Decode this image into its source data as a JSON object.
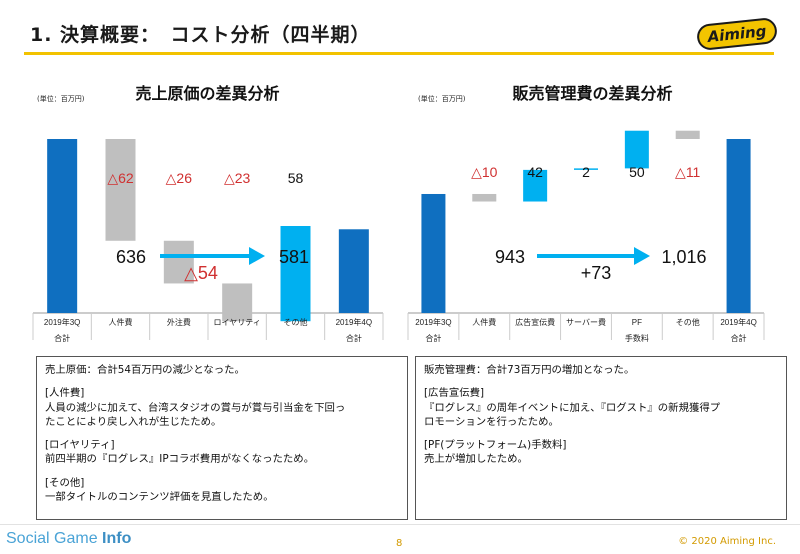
{
  "header": {
    "title": "1. 決算概要：　コスト分析（四半期）",
    "logo_text": "Aiming"
  },
  "chart_data": [
    {
      "type": "bar",
      "subtype": "waterfall",
      "title": "売上原価の差異分析",
      "unit": "(単位：百万円)",
      "categories": [
        "2019年3Q\n合計",
        "人件費",
        "外注費",
        "ロイヤリティ",
        "その他",
        "2019年4Q\n合計"
      ],
      "start_value": 636,
      "end_value": 581,
      "changes": [
        -62,
        -26,
        -23,
        58
      ],
      "change_labels": [
        "△62",
        "△26",
        "△23",
        "58"
      ],
      "start_label": "636",
      "end_label": "581",
      "diff_label": "△54",
      "colors": {
        "total": "#0f6fc0",
        "decrease": "#bfbfbf",
        "increase": "#00b0f0",
        "arrow": "#00b0f0",
        "negative_text": "#d03030"
      }
    },
    {
      "type": "bar",
      "subtype": "waterfall",
      "title": "販売管理費の差異分析",
      "unit": "(単位：百万円)",
      "categories": [
        "2019年3Q\n合計",
        "人件費",
        "広告宣伝費",
        "サーバー費",
        "PF\n手数料",
        "その他",
        "2019年4Q\n合計"
      ],
      "start_value": 943,
      "end_value": 1016,
      "changes": [
        -10,
        42,
        2,
        50,
        -11
      ],
      "change_labels": [
        "△10",
        "42",
        "2",
        "50",
        "△11"
      ],
      "start_label": "943",
      "end_label": "1,016",
      "diff_label": "+73",
      "colors": {
        "total": "#0f6fc0",
        "decrease": "#bfbfbf",
        "increase": "#00b0f0",
        "arrow": "#00b0f0",
        "negative_text": "#d03030"
      }
    }
  ],
  "notes": {
    "left": [
      "売上原価：合計54百万円の減少となった。",
      "",
      "[人件費]",
      "人員の減少に加えて、台湾スタジオの賞与が賞与引当金を下回っ",
      "たことにより戻し入れが生じたため。",
      "",
      "[ロイヤリティ]",
      "前四半期の『ログレス』IPコラボ費用がなくなったため。",
      "",
      "[その他]",
      "一部タイトルのコンテンツ評価を見直したため。"
    ],
    "right": [
      "販売管理費：合計73百万円の増加となった。",
      "",
      "[広告宣伝費]",
      "『ログレス』の周年イベントに加え、『ログスト』の新規獲得プ",
      "ロモーションを行ったため。",
      "",
      "[PF(プラットフォーム)手数料]",
      "売上が増加したため。"
    ]
  },
  "footer": {
    "brand_a": "Social Game ",
    "brand_b": "Info",
    "page_number": "8",
    "copyright": "© 2020 Aiming Inc."
  }
}
